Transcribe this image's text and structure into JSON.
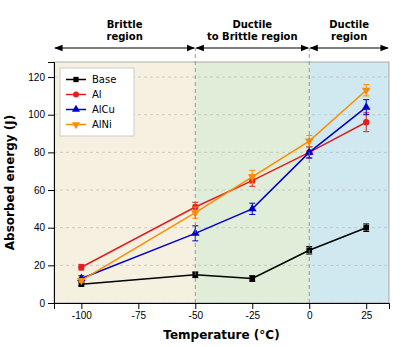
{
  "chart_data": {
    "type": "line",
    "xlabel": "Temperature (°C)",
    "ylabel": "Absorbed energy (J)",
    "x": [
      -100,
      -50,
      -25,
      0,
      25
    ],
    "series": [
      {
        "name": "Base",
        "color": "#000000",
        "marker": "square",
        "values": [
          10,
          15,
          13,
          28,
          40
        ],
        "errors": [
          1,
          1.5,
          1.5,
          2,
          2
        ]
      },
      {
        "name": "Al",
        "color": "#e02020",
        "marker": "circle",
        "values": [
          19,
          51,
          65,
          80,
          96
        ],
        "errors": [
          1.5,
          2.5,
          3,
          3,
          5
        ]
      },
      {
        "name": "AlCu",
        "color": "#0000cc",
        "marker": "triangle-up",
        "values": [
          13,
          37,
          50,
          80,
          104
        ],
        "errors": [
          1.5,
          4,
          3,
          3,
          4
        ]
      },
      {
        "name": "AlNi",
        "color": "#ff8c00",
        "marker": "triangle-down",
        "values": [
          12,
          48,
          67,
          86,
          113
        ],
        "errors": [
          1,
          3,
          3.5,
          3,
          3
        ]
      }
    ],
    "xlim": [
      -112,
      35
    ],
    "ylim": [
      0,
      128
    ],
    "xticks": [
      -100,
      -75,
      -50,
      -25,
      0,
      25
    ],
    "yticks": [
      0,
      20,
      40,
      60,
      80,
      100,
      120
    ],
    "grid": "y",
    "legend": "upper left",
    "regions": [
      {
        "label": "Brittle\nregion",
        "from": -112,
        "to": -50,
        "color": "#f5f0e0"
      },
      {
        "label": "Ductile\nto Brittle region",
        "from": -50,
        "to": 0,
        "color": "#e0edd8"
      },
      {
        "label": "Ductile\nregion",
        "from": 0,
        "to": 35,
        "color": "#d0e8f0"
      }
    ]
  }
}
